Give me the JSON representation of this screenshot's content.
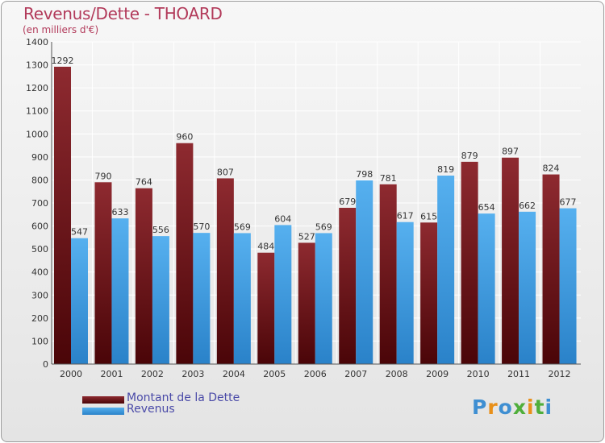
{
  "title": "Revenus/Dette - THOARD",
  "subtitle": "(en milliers d'€)",
  "logo_text": "Proxiti",
  "colors": {
    "title": "#b23a5a",
    "dette": "#7a1a1f",
    "revenus": "#4aa3e6",
    "legend_text": "#4a4aa8",
    "axis_text": "#333333",
    "grid": "#ffffff"
  },
  "legend": {
    "dette_label": "Montant de la Dette",
    "revenus_label": "Revenus"
  },
  "chart_data": {
    "type": "bar",
    "title": "Revenus/Dette - THOARD",
    "subtitle": "(en milliers d'€)",
    "xlabel": "",
    "ylabel": "",
    "ylim": [
      0,
      1400
    ],
    "yticks": [
      0,
      100,
      200,
      300,
      400,
      500,
      600,
      700,
      800,
      900,
      1000,
      1100,
      1200,
      1300,
      1400
    ],
    "grid": true,
    "legend_position": "bottom-left",
    "categories": [
      "2000",
      "2001",
      "2002",
      "2003",
      "2004",
      "2005",
      "2006",
      "2007",
      "2008",
      "2009",
      "2010",
      "2011",
      "2012"
    ],
    "series": [
      {
        "name": "Montant de la Dette",
        "color": "#7a1a1f",
        "values": [
          1292,
          790,
          764,
          960,
          807,
          484,
          527,
          679,
          781,
          615,
          879,
          897,
          824
        ]
      },
      {
        "name": "Revenus",
        "color": "#4aa3e6",
        "values": [
          547,
          633,
          556,
          570,
          569,
          604,
          569,
          798,
          617,
          819,
          654,
          662,
          677
        ]
      }
    ]
  }
}
